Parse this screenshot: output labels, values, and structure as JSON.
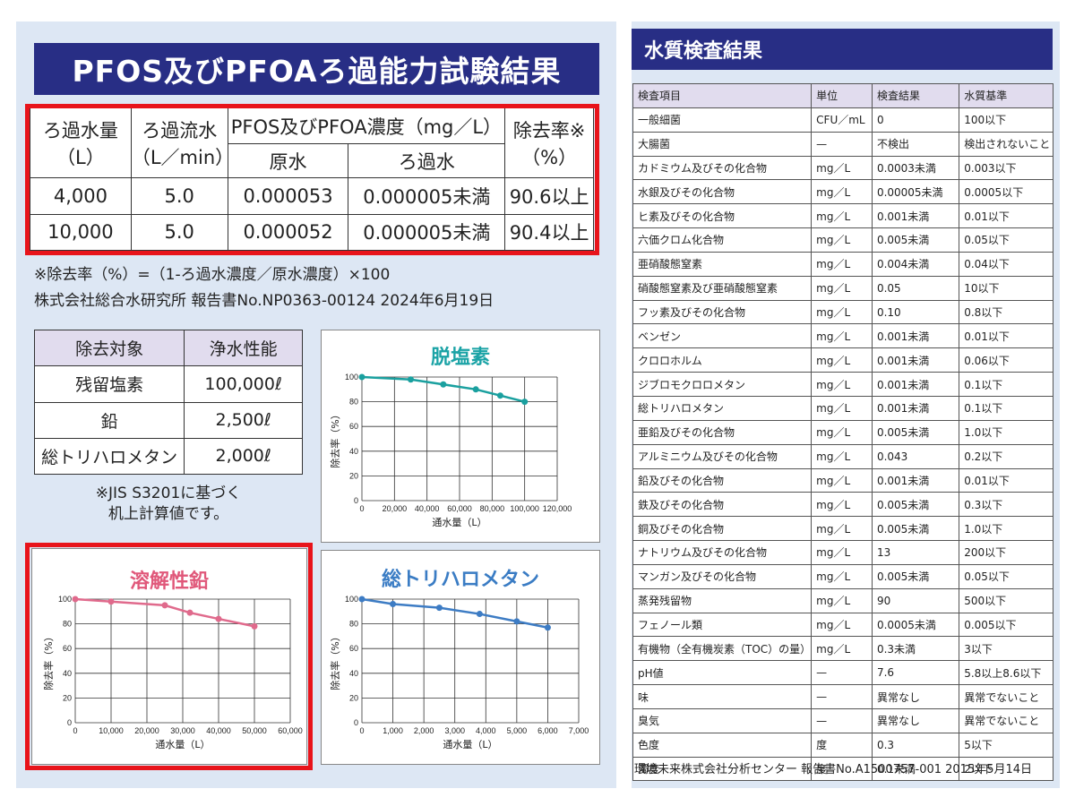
{
  "pfos": {
    "title": "PFOS及びPFOAろ過能力試験結果",
    "headers": {
      "volume": "ろ過水量",
      "volume_unit": "（L）",
      "flow": "ろ過流水",
      "flow_unit": "（L／min）",
      "conc": "PFOS及びPFOA濃度（mg／L）",
      "raw": "原水",
      "filtered": "ろ過水",
      "removal": "除去率※",
      "removal_unit": "（%）"
    },
    "rows": [
      [
        "4,000",
        "5.0",
        "0.000053",
        "0.000005未満",
        "90.6以上"
      ],
      [
        "10,000",
        "5.0",
        "0.000052",
        "0.000005未満",
        "90.4以上"
      ]
    ],
    "note1": "※除去率（%）=（1-ろ過水濃度／原水濃度）×100",
    "note2": "株式会社総合水研究所 報告書No.NP0363-00124 2024年6月19日"
  },
  "performance": {
    "headers": [
      "除去対象",
      "浄水性能"
    ],
    "rows": [
      [
        "残留塩素",
        "100,000ℓ"
      ],
      [
        "鉛",
        "2,500ℓ"
      ],
      [
        "総トリハロメタン",
        "2,000ℓ"
      ]
    ],
    "note_line1": "※JIS S3201に基づく",
    "note_line2": "机上計算値です。"
  },
  "chart_data": [
    {
      "type": "line",
      "title": "脱塩素",
      "title_color": "#1ba3a6",
      "line_color": "#1aa09f",
      "xlabel": "通水量（L）",
      "ylabel": "除去率（%）",
      "xlim": [
        0,
        120000
      ],
      "ylim": [
        0,
        100
      ],
      "x_ticks": [
        "0",
        "20,000",
        "40,000",
        "60,000",
        "80,000",
        "100,000",
        "120,000"
      ],
      "y_ticks": [
        "0",
        "20",
        "40",
        "60",
        "80",
        "100"
      ],
      "x": [
        0,
        30000,
        50000,
        70000,
        85000,
        100000
      ],
      "y": [
        100,
        98,
        94,
        90,
        85,
        80
      ]
    },
    {
      "type": "line",
      "title": "溶解性鉛",
      "title_color": "#e0587a",
      "line_color": "#e06a8c",
      "xlabel": "通水量（L）",
      "ylabel": "除去率（%）",
      "xlim": [
        0,
        60000
      ],
      "ylim": [
        0,
        100
      ],
      "x_ticks": [
        "0",
        "10,000",
        "20,000",
        "30,000",
        "40,000",
        "50,000",
        "60,000"
      ],
      "y_ticks": [
        "0",
        "20",
        "40",
        "60",
        "80",
        "100"
      ],
      "x": [
        0,
        10000,
        25000,
        32000,
        40000,
        50000
      ],
      "y": [
        100,
        98,
        95,
        89,
        84,
        78
      ]
    },
    {
      "type": "line",
      "title": "総トリハロメタン",
      "title_color": "#3a7cc4",
      "line_color": "#3d7cc4",
      "xlabel": "通水量（L）",
      "ylabel": "除去率（%）",
      "xlim": [
        0,
        7000
      ],
      "ylim": [
        0,
        100
      ],
      "x_ticks": [
        "0",
        "1,000",
        "2,000",
        "3,000",
        "4,000",
        "5,000",
        "6,000",
        "7,000"
      ],
      "y_ticks": [
        "0",
        "20",
        "40",
        "60",
        "80",
        "100"
      ],
      "x": [
        0,
        1000,
        2500,
        3800,
        5000,
        6000
      ],
      "y": [
        100,
        96,
        93,
        88,
        82,
        77
      ]
    }
  ],
  "water_quality": {
    "title": "水質検査結果",
    "headers": [
      "検査項目",
      "単位",
      "検査結果",
      "水質基準"
    ],
    "rows": [
      [
        "一般細菌",
        "CFU／mL",
        "0",
        "100以下"
      ],
      [
        "大腸菌",
        "—",
        "不検出",
        "検出されないこと"
      ],
      [
        "カドミウム及びその化合物",
        "mg／L",
        "0.0003未満",
        "0.003以下"
      ],
      [
        "水銀及びその化合物",
        "mg／L",
        "0.00005未満",
        "0.0005以下"
      ],
      [
        "ヒ素及びその化合物",
        "mg／L",
        "0.001未満",
        "0.01以下"
      ],
      [
        "六価クロム化合物",
        "mg／L",
        "0.005未満",
        "0.05以下"
      ],
      [
        "亜硝酸態窒素",
        "mg／L",
        "0.004未満",
        "0.04以下"
      ],
      [
        "硝酸態窒素及び亜硝酸態窒素",
        "mg／L",
        "0.05",
        "10以下"
      ],
      [
        "フッ素及びその化合物",
        "mg／L",
        "0.10",
        "0.8以下"
      ],
      [
        "ベンゼン",
        "mg／L",
        "0.001未満",
        "0.01以下"
      ],
      [
        "クロロホルム",
        "mg／L",
        "0.001未満",
        "0.06以下"
      ],
      [
        "ジブロモクロロメタン",
        "mg／L",
        "0.001未満",
        "0.1以下"
      ],
      [
        "総トリハロメタン",
        "mg／L",
        "0.001未満",
        "0.1以下"
      ],
      [
        "亜鉛及びその化合物",
        "mg／L",
        "0.005未満",
        "1.0以下"
      ],
      [
        "アルミニウム及びその化合物",
        "mg／L",
        "0.043",
        "0.2以下"
      ],
      [
        "鉛及びその化合物",
        "mg／L",
        "0.001未満",
        "0.01以下"
      ],
      [
        "鉄及びその化合物",
        "mg／L",
        "0.005未満",
        "0.3以下"
      ],
      [
        "銅及びその化合物",
        "mg／L",
        "0.005未満",
        "1.0以下"
      ],
      [
        "ナトリウム及びその化合物",
        "mg／L",
        "13",
        "200以下"
      ],
      [
        "マンガン及びその化合物",
        "mg／L",
        "0.005未満",
        "0.05以下"
      ],
      [
        "蒸発残留物",
        "mg／L",
        "90",
        "500以下"
      ],
      [
        "フェノール類",
        "mg／L",
        "0.0005未満",
        "0.005以下"
      ],
      [
        "有機物（全有機炭素（TOC）の量）",
        "mg／L",
        "0.3未満",
        "3以下"
      ],
      [
        "pH値",
        "—",
        "7.6",
        "5.8以上8.6以下"
      ],
      [
        "味",
        "—",
        "異常なし",
        "異常でないこと"
      ],
      [
        "臭気",
        "—",
        "異常なし",
        "異常でないこと"
      ],
      [
        "色度",
        "度",
        "0.3",
        "5以下"
      ],
      [
        "濁度",
        "度",
        "0.1未満",
        "2以下"
      ]
    ],
    "footer": "環境未来株式会社分析センター 報告書No.A1500757-001 2015年5月14日"
  },
  "colors": {
    "banner": "#282e85",
    "highlight": "#e8141b",
    "panel": "#dde7f4"
  }
}
